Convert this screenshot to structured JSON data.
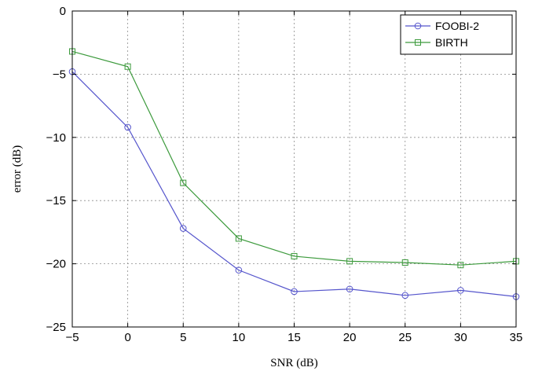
{
  "chart_data": {
    "type": "line",
    "xlabel": "SNR (dB)",
    "ylabel": "error (dB)",
    "xlim": [
      -5,
      35
    ],
    "ylim": [
      -25,
      0
    ],
    "xticks": [
      -5,
      0,
      5,
      10,
      15,
      20,
      25,
      30,
      35
    ],
    "yticks": [
      0,
      -5,
      -10,
      -15,
      -20,
      -25
    ],
    "grid": true,
    "legend_position": "top-right",
    "x": [
      -5,
      0,
      5,
      10,
      15,
      20,
      25,
      30,
      35
    ],
    "series": [
      {
        "name": "FOOBI-2",
        "color": "#5555cc",
        "marker": "circle",
        "values": [
          -4.8,
          -9.2,
          -17.2,
          -20.5,
          -22.2,
          -22.0,
          -22.5,
          -22.1,
          -22.6
        ]
      },
      {
        "name": "BIRTH",
        "color": "#3c9a3c",
        "marker": "square",
        "values": [
          -3.2,
          -4.4,
          -13.6,
          -18.0,
          -19.4,
          -19.8,
          -19.9,
          -20.1,
          -19.8
        ]
      }
    ]
  }
}
